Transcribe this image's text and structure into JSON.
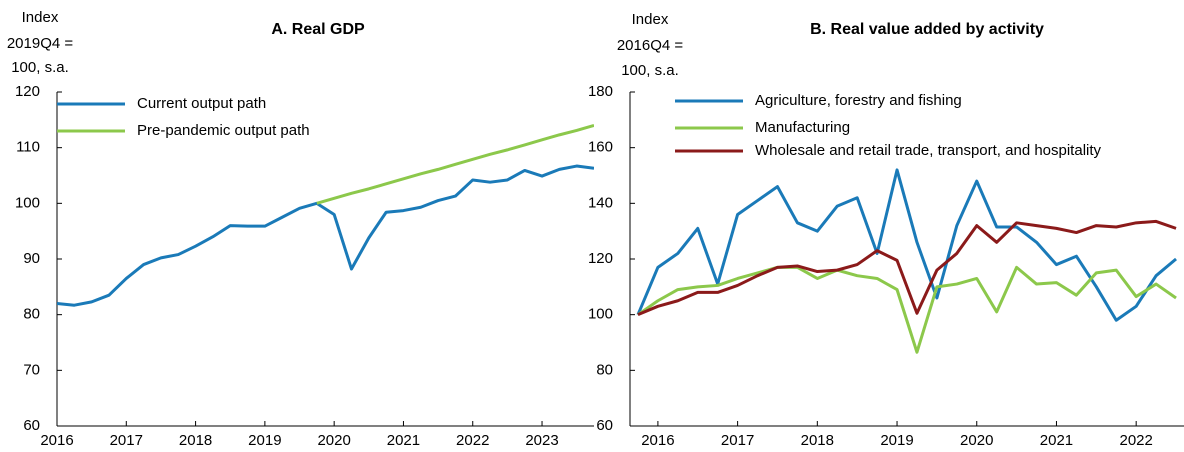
{
  "chart_data": [
    {
      "type": "line",
      "title": "A. Real GDP",
      "y_label_lines": [
        "Index",
        "2019Q4 =",
        "100, s.a."
      ],
      "x": [
        2016,
        2016.25,
        2016.5,
        2016.75,
        2017,
        2017.25,
        2017.5,
        2017.75,
        2018,
        2018.25,
        2018.5,
        2018.75,
        2019,
        2019.25,
        2019.5,
        2019.75,
        2020,
        2020.25,
        2020.5,
        2020.75,
        2021,
        2021.25,
        2021.5,
        2021.75,
        2022,
        2022.25,
        2022.5,
        2022.75,
        2023,
        2023.25,
        2023.5,
        2023.75
      ],
      "series": [
        {
          "name": "Current output path",
          "color": "#1a7ab8",
          "values": [
            82,
            81.7,
            82.3,
            83.5,
            86.5,
            89,
            90.2,
            90.8,
            92.3,
            94,
            96,
            95.9,
            95.9,
            97.5,
            99.1,
            100,
            98,
            88.2,
            93.8,
            98.4,
            98.7,
            99.3,
            100.5,
            101.3,
            104.2,
            103.8,
            104.2,
            105.9,
            104.9,
            106.1,
            106.7,
            106.3
          ]
        },
        {
          "name": "Pre-pandemic output path",
          "color": "#8cc84b",
          "values": [
            null,
            null,
            null,
            null,
            null,
            null,
            null,
            null,
            null,
            null,
            null,
            null,
            null,
            null,
            null,
            100,
            100.9,
            101.8,
            102.6,
            103.5,
            104.4,
            105.3,
            106.1,
            107,
            107.9,
            108.8,
            109.6,
            110.5,
            111.4,
            112.3,
            113.1,
            114
          ]
        }
      ],
      "xlim": [
        2016,
        2023.75
      ],
      "xticks": [
        2016,
        2017,
        2018,
        2019,
        2020,
        2021,
        2022,
        2023
      ],
      "ylim": [
        60,
        120
      ],
      "yticks": [
        60,
        70,
        80,
        90,
        100,
        110,
        120
      ],
      "grid": false,
      "legend": "top-left"
    },
    {
      "type": "line",
      "title": "B. Real value added by activity",
      "y_label_lines": [
        "Index",
        "2016Q4 =",
        "100, s.a."
      ],
      "x": [
        2015.75,
        2016,
        2016.25,
        2016.5,
        2016.75,
        2017,
        2017.25,
        2017.5,
        2017.75,
        2018,
        2018.25,
        2018.5,
        2018.75,
        2019,
        2019.25,
        2019.5,
        2019.75,
        2020,
        2020.25,
        2020.5,
        2020.75,
        2021,
        2021.25,
        2021.5,
        2021.75,
        2022,
        2022.25,
        2022.5
      ],
      "series": [
        {
          "name": "Agriculture, forestry and fishing",
          "color": "#1a7ab8",
          "values": [
            100,
            117,
            122,
            131,
            111,
            136,
            141,
            146,
            133,
            130,
            139,
            142,
            122,
            152,
            126,
            106,
            132,
            148,
            131.5,
            131.5,
            126,
            118,
            121,
            110,
            98,
            103,
            114,
            120
          ]
        },
        {
          "name": "Manufacturing",
          "color": "#8cc84b",
          "values": [
            100,
            105,
            109,
            110,
            110.5,
            113,
            115,
            117,
            117,
            113,
            116,
            114,
            113,
            109,
            86.5,
            110,
            111,
            113,
            101,
            117,
            111,
            111.5,
            107,
            115,
            116,
            106.5,
            111,
            106
          ]
        },
        {
          "name": "Wholesale and retail trade, transport, and hospitality",
          "color": "#8b1a1a",
          "values": [
            100,
            103,
            105,
            108,
            108,
            110.5,
            114,
            117,
            117.5,
            115.5,
            116,
            118,
            123,
            119.5,
            100.5,
            116,
            122,
            132,
            126,
            133,
            132,
            131,
            129.5,
            132,
            131.5,
            133,
            133.5,
            131
          ]
        }
      ],
      "xlim": [
        2015.65,
        2022.6
      ],
      "xticks": [
        2016,
        2017,
        2018,
        2019,
        2020,
        2021,
        2022
      ],
      "ylim": [
        60,
        180
      ],
      "yticks": [
        60,
        80,
        100,
        120,
        140,
        160,
        180
      ],
      "grid": false,
      "legend": "top-left"
    }
  ]
}
